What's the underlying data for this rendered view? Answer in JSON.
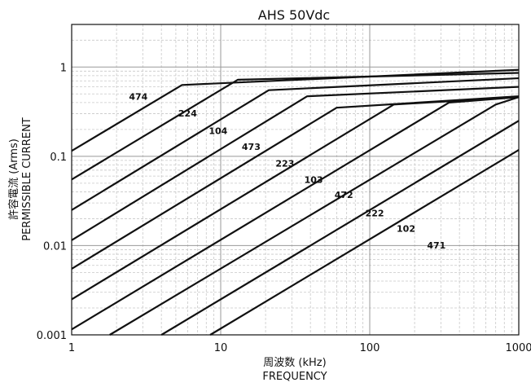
{
  "chart_data": {
    "type": "line",
    "title": "AHS 50Vdc",
    "xlabel": "周波数 (kHz)",
    "xlabel_en": "FREQUENCY",
    "ylabel": "許容電流 (Arms)",
    "ylabel_en": "PERMISSIBLE CURRENT",
    "xscale": "log",
    "yscale": "log",
    "xlim": [
      1,
      1000
    ],
    "ylim": [
      0.001,
      3
    ],
    "grid": true,
    "x_ticks": [
      {
        "value": 1,
        "label": "1"
      },
      {
        "value": 10,
        "label": "10"
      },
      {
        "value": 100,
        "label": "100"
      },
      {
        "value": 1000,
        "label": "1000"
      }
    ],
    "y_ticks": [
      {
        "value": 0.001,
        "label": "0.001"
      },
      {
        "value": 0.01,
        "label": "0.01"
      },
      {
        "value": 0.1,
        "label": "0.1"
      },
      {
        "value": 1,
        "label": "1"
      }
    ],
    "series": [
      {
        "name": "474",
        "label_at": [
          2.8,
          0.43
        ],
        "points": [
          [
            1,
            0.115
          ],
          [
            5.5,
            0.63
          ],
          [
            1000,
            0.93
          ]
        ]
      },
      {
        "name": "224",
        "label_at": [
          6.0,
          0.28
        ],
        "points": [
          [
            1,
            0.055
          ],
          [
            13,
            0.72
          ],
          [
            1000,
            0.86
          ]
        ]
      },
      {
        "name": "104",
        "label_at": [
          9.6,
          0.177
        ],
        "points": [
          [
            1,
            0.025
          ],
          [
            21,
            0.55
          ],
          [
            1000,
            0.75
          ]
        ]
      },
      {
        "name": "473",
        "label_at": [
          16,
          0.118
        ],
        "points": [
          [
            1,
            0.0115
          ],
          [
            38,
            0.47
          ],
          [
            1000,
            0.6
          ]
        ]
      },
      {
        "name": "223",
        "label_at": [
          27,
          0.077
        ],
        "points": [
          [
            1,
            0.0055
          ],
          [
            60,
            0.35
          ],
          [
            1000,
            0.47
          ]
        ]
      },
      {
        "name": "103",
        "label_at": [
          42,
          0.0505
        ],
        "points": [
          [
            1,
            0.0025
          ],
          [
            145,
            0.38
          ],
          [
            1000,
            0.46
          ]
        ]
      },
      {
        "name": "472",
        "label_at": [
          67,
          0.034
        ],
        "points": [
          [
            1,
            0.00115
          ],
          [
            340,
            0.4
          ],
          [
            1000,
            0.46
          ]
        ]
      },
      {
        "name": "222",
        "label_at": [
          108,
          0.0212
        ],
        "points": [
          [
            1.8,
            0.001
          ],
          [
            700,
            0.38
          ],
          [
            1000,
            0.46
          ]
        ]
      },
      {
        "name": "102",
        "label_at": [
          175,
          0.0143
        ],
        "points": [
          [
            4,
            0.001
          ],
          [
            1000,
            0.25
          ]
        ]
      },
      {
        "name": "471",
        "label_at": [
          280,
          0.0093
        ],
        "points": [
          [
            8.5,
            0.001
          ],
          [
            1000,
            0.118
          ]
        ]
      }
    ]
  }
}
